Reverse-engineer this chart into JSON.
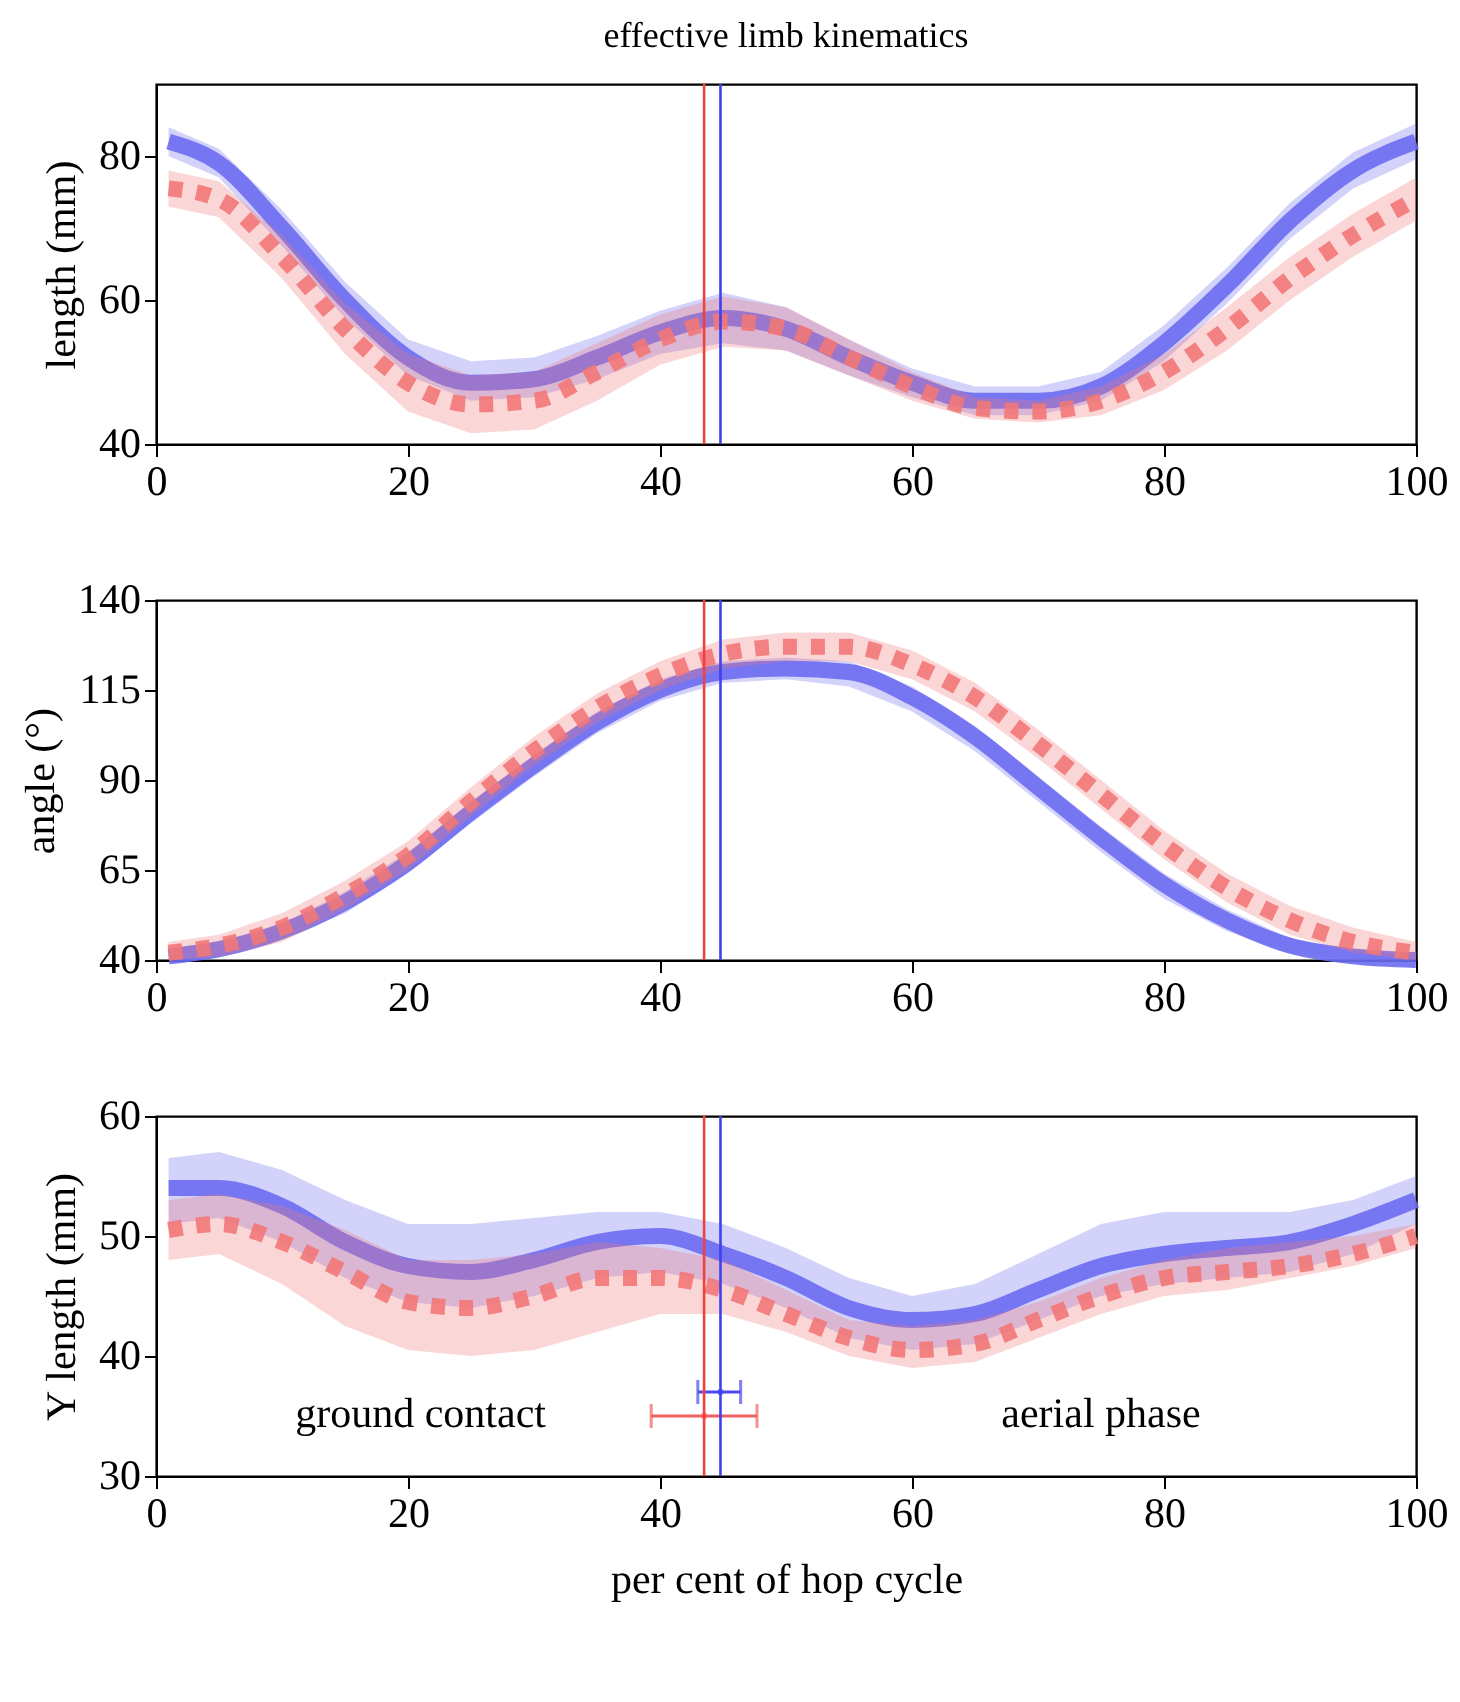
{
  "chart_data": [
    {
      "type": "line",
      "title": "effective limb kinematics",
      "ylabel": "length (mm)",
      "xlim": [
        0,
        100
      ],
      "xticks": [
        0,
        20,
        40,
        60,
        80,
        100
      ],
      "ylim": [
        40,
        90
      ],
      "yticks": [
        40,
        60,
        80
      ],
      "x": [
        1,
        5,
        10,
        15,
        20,
        25,
        30,
        35,
        40,
        45,
        50,
        55,
        60,
        65,
        70,
        75,
        80,
        85,
        90,
        95,
        100
      ],
      "series": [
        {
          "color": "#6b6bf2",
          "line_style": "solid",
          "values": [
            82,
            79,
            70,
            60,
            52,
            48.5,
            49,
            52,
            55.5,
            57.5,
            56,
            52,
            48.5,
            46,
            46,
            48,
            54,
            62,
            71,
            78,
            82
          ],
          "lower": [
            80,
            77,
            67.5,
            57.5,
            49.5,
            46,
            46.5,
            49,
            52.5,
            54,
            53,
            49.5,
            46.5,
            44,
            44,
            46,
            51.5,
            59.5,
            68.5,
            75.5,
            79.5
          ],
          "upper": [
            84,
            81,
            72.5,
            62.5,
            54.5,
            51.5,
            52,
            55,
            58.5,
            61,
            59,
            54.5,
            50.5,
            48,
            48,
            50,
            56.5,
            64.5,
            73.5,
            80.5,
            84.5
          ]
        },
        {
          "color": "#f27878",
          "line_style": "dashed",
          "values": [
            75.5,
            74,
            66,
            56,
            48.5,
            45.5,
            46,
            50,
            54.5,
            57,
            56,
            52,
            48,
            45,
            44.5,
            46,
            50,
            56,
            63,
            69,
            74
          ],
          "lower": [
            73,
            71.5,
            63,
            52.5,
            44.5,
            41.5,
            42,
            46,
            51,
            53.5,
            53,
            49.5,
            46,
            43.5,
            43,
            44,
            47.5,
            53,
            60,
            66,
            71
          ],
          "upper": [
            78,
            76.5,
            69,
            59.5,
            52.5,
            49.5,
            50,
            54,
            58,
            60.5,
            59,
            54.5,
            50,
            46.5,
            46,
            48,
            52.5,
            59,
            66,
            72,
            77
          ]
        }
      ],
      "ref_lines": [
        {
          "axis": "x",
          "value": 43.5,
          "color": "#f04040"
        },
        {
          "axis": "x",
          "value": 44.8,
          "color": "#4040f0"
        }
      ]
    },
    {
      "type": "line",
      "ylabel": "angle (°)",
      "xlim": [
        0,
        100
      ],
      "xticks": [
        0,
        20,
        40,
        60,
        80,
        100
      ],
      "ylim": [
        40,
        140
      ],
      "yticks": [
        40,
        65,
        90,
        115,
        140
      ],
      "x": [
        1,
        5,
        10,
        15,
        20,
        25,
        30,
        35,
        40,
        45,
        50,
        55,
        60,
        65,
        70,
        75,
        80,
        85,
        90,
        95,
        100
      ],
      "series": [
        {
          "color": "#6b6bf2",
          "line_style": "solid",
          "values": [
            41,
            43,
            48,
            56,
            67,
            81,
            94,
            106,
            115,
            120,
            121,
            120,
            113,
            102,
            88,
            74,
            61,
            51,
            44,
            41,
            40
          ],
          "lower": [
            40,
            41,
            46,
            53,
            64,
            78,
            91,
            103,
            112,
            117,
            118,
            116,
            109,
            98,
            84,
            70,
            57,
            48,
            42,
            40,
            40
          ],
          "upper": [
            43,
            45,
            50,
            59,
            70,
            84,
            97,
            109,
            118,
            123,
            124,
            123,
            116,
            105,
            91,
            77,
            64,
            54,
            46,
            43,
            41
          ]
        },
        {
          "color": "#f27878",
          "line_style": "dashed",
          "values": [
            42,
            44,
            49,
            58,
            69,
            84,
            98,
            110,
            119,
            125,
            127,
            127,
            122,
            113,
            100,
            86,
            72,
            60,
            51,
            45,
            42
          ],
          "lower": [
            40,
            41,
            45,
            54,
            65,
            80,
            94,
            106,
            115,
            121,
            123,
            123,
            118,
            109,
            96,
            82,
            68,
            56,
            47,
            42,
            40
          ],
          "upper": [
            45,
            47,
            53,
            62,
            73,
            88,
            102,
            114,
            123,
            129,
            131,
            131,
            126,
            117,
            104,
            90,
            76,
            64,
            55,
            49,
            45
          ]
        }
      ],
      "ref_lines": [
        {
          "axis": "x",
          "value": 43.5,
          "color": "#f04040"
        },
        {
          "axis": "x",
          "value": 44.8,
          "color": "#4040f0"
        }
      ]
    },
    {
      "type": "line",
      "xlabel": "per cent of hop cycle",
      "ylabel": "Y length (mm)",
      "xlim": [
        0,
        100
      ],
      "xticks": [
        0,
        20,
        40,
        60,
        80,
        100
      ],
      "ylim": [
        30,
        60
      ],
      "yticks": [
        30,
        40,
        50,
        60
      ],
      "x": [
        1,
        5,
        10,
        15,
        20,
        25,
        30,
        35,
        40,
        45,
        50,
        55,
        60,
        65,
        70,
        75,
        80,
        85,
        90,
        95,
        100
      ],
      "series": [
        {
          "color": "#6b6bf2",
          "line_style": "solid",
          "values": [
            54,
            54,
            52.5,
            49.5,
            47.5,
            47,
            48,
            49.5,
            50,
            48.5,
            46.5,
            44,
            43,
            43.5,
            45.5,
            47.5,
            48.5,
            49,
            49.5,
            51,
            53
          ],
          "lower": [
            51,
            51.5,
            49.5,
            46.5,
            44.5,
            44,
            45,
            46.5,
            47,
            46,
            44,
            41.5,
            40.5,
            41,
            43,
            45,
            46,
            46.5,
            47,
            48.5,
            51
          ],
          "upper": [
            56.5,
            57,
            55.5,
            53,
            51,
            51,
            51.5,
            52,
            52,
            51,
            49,
            46.5,
            45,
            46,
            48.5,
            51,
            52,
            52,
            52,
            53,
            55
          ]
        },
        {
          "color": "#f27878",
          "line_style": "dashed",
          "values": [
            50.5,
            51,
            49.5,
            47,
            44.5,
            44,
            45,
            46.5,
            46.5,
            45.5,
            43.5,
            41.5,
            40.5,
            41,
            43,
            45,
            46.5,
            47,
            47.5,
            48.5,
            50
          ],
          "lower": [
            48,
            48.5,
            46,
            42.5,
            40.5,
            40,
            40.5,
            42,
            43.5,
            43.5,
            42,
            40,
            39,
            39.5,
            41.5,
            43.5,
            45,
            45.5,
            46.5,
            47.5,
            49
          ],
          "upper": [
            53,
            53.5,
            52.5,
            50.5,
            48,
            48,
            48.5,
            49.5,
            49,
            48,
            45.5,
            43,
            42.5,
            43,
            44.5,
            46.5,
            48,
            49,
            49.5,
            50,
            51
          ]
        },
        {
          "type": "scatter",
          "color": "#4a4af0",
          "x": [
            44.8
          ],
          "values": [
            37
          ],
          "xerrors": [
            [
              43,
              46.4
            ]
          ]
        },
        {
          "type": "scatter",
          "color": "#f06060",
          "x": [
            43.5
          ],
          "values": [
            35
          ],
          "xerrors": [
            [
              39.3,
              47.7
            ]
          ]
        }
      ],
      "ref_lines": [
        {
          "axis": "x",
          "value": 43.5,
          "color": "#f04040"
        },
        {
          "axis": "x",
          "value": 44.8,
          "color": "#4040f0"
        }
      ],
      "annotations": [
        "ground contact",
        "aerial phase"
      ]
    }
  ]
}
